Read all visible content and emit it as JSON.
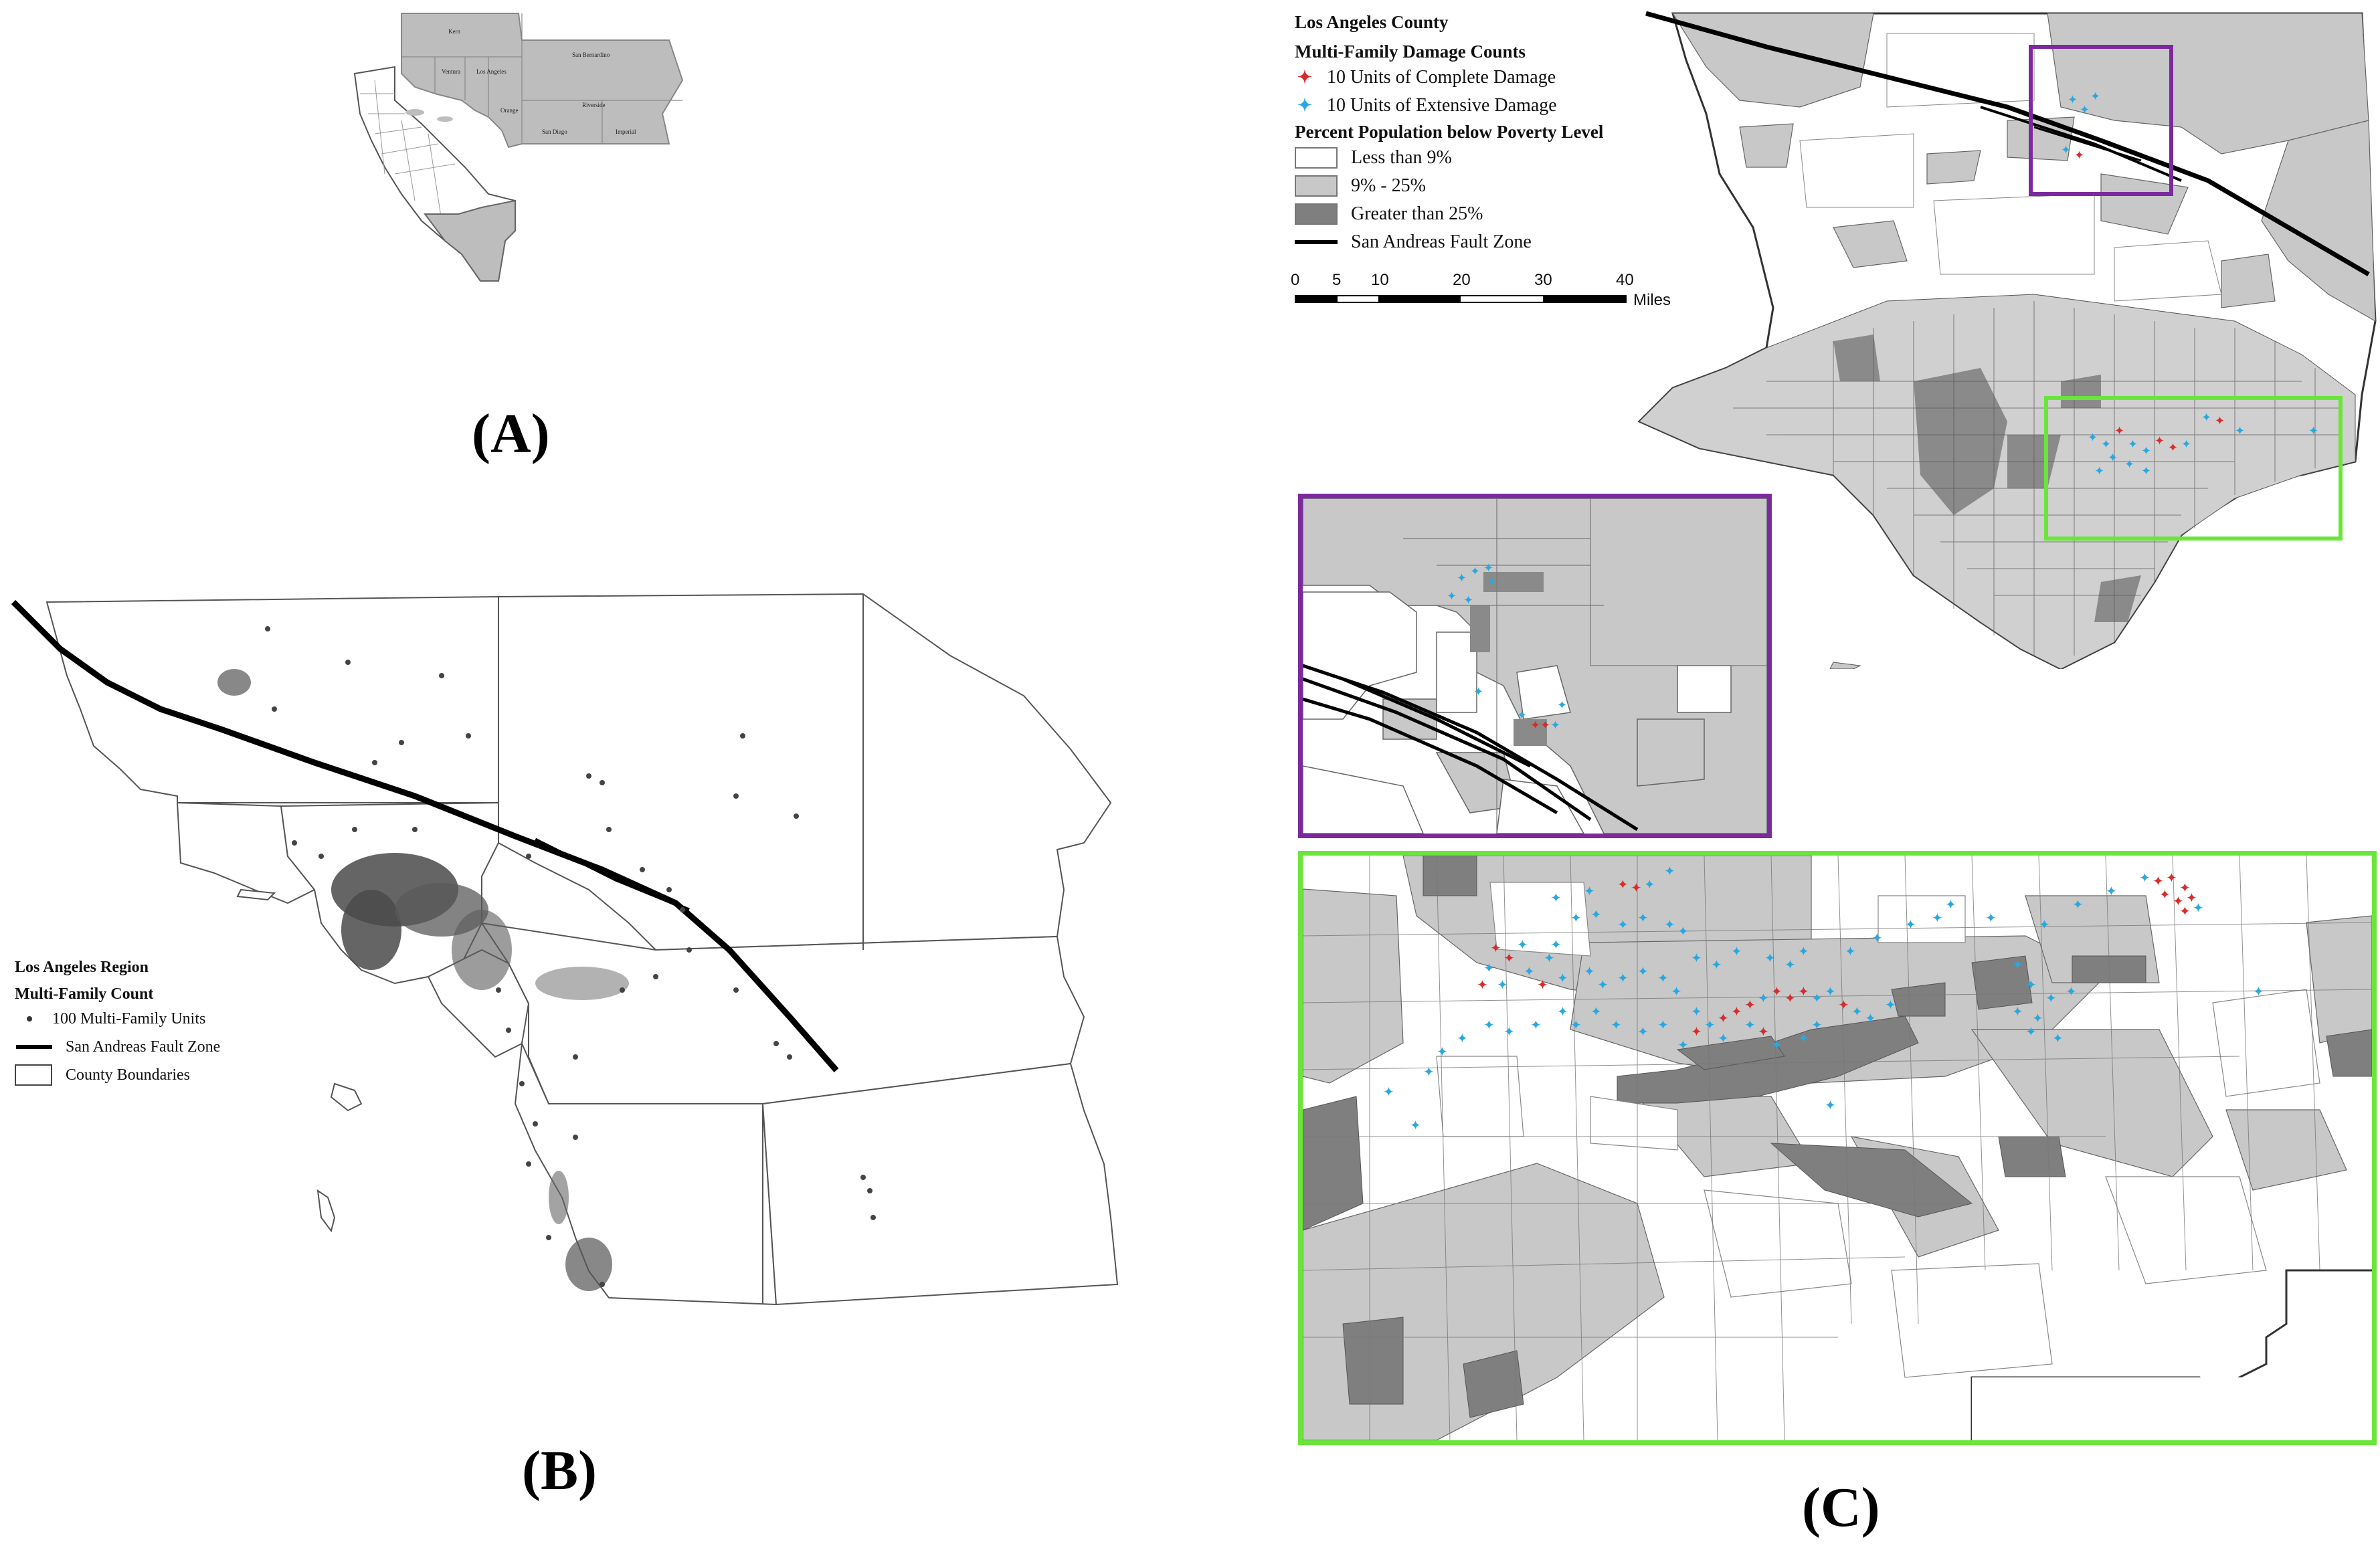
{
  "panels": {
    "a": {
      "label": "(A)",
      "county_labels": [
        "Kern",
        "San Bernardino",
        "Ventura",
        "Los Angeles",
        "Orange",
        "Riverside",
        "San Diego",
        "Imperial"
      ]
    },
    "b": {
      "label": "(B)",
      "legend": {
        "title": "Los Angeles Region",
        "subtitle": "Multi-Family Count",
        "items": [
          {
            "symbol": "dot",
            "label": "100 Multi-Family Units"
          },
          {
            "symbol": "line",
            "label": "San Andreas Fault Zone"
          },
          {
            "symbol": "box",
            "label": "County Boundaries"
          }
        ]
      }
    },
    "c": {
      "label": "(C)",
      "legend": {
        "title": "Los Angeles County",
        "damage_title": "Multi-Family Damage Counts",
        "damage_items": [
          {
            "symbol": "✦",
            "color": "#d92b2b",
            "label": "10 Units of Complete Damage"
          },
          {
            "symbol": "✦",
            "color": "#29a8e0",
            "label": "10 Units of Extensive Damage"
          }
        ],
        "poverty_title": "Percent Population below Poverty Level",
        "poverty_items": [
          {
            "fill": "#ffffff",
            "label": "Less than 9%"
          },
          {
            "fill": "#c8c8c8",
            "label": "9% - 25%"
          },
          {
            "fill": "#7f7f7f",
            "label": "Greater than 25%"
          }
        ],
        "fault_label": "San Andreas Fault Zone"
      },
      "scale_bar": {
        "ticks": [
          "0",
          "5",
          "10",
          "20",
          "30",
          "40"
        ],
        "unit": "Miles"
      }
    }
  },
  "colors": {
    "complete_damage": "#d92b2b",
    "extensive_damage": "#29a8e0",
    "poverty_low": "#ffffff",
    "poverty_mid": "#c8c8c8",
    "poverty_high": "#7f7f7f",
    "inset_purple": "#7b2a9e",
    "inset_green": "#6be53a",
    "fault": "#000000"
  }
}
